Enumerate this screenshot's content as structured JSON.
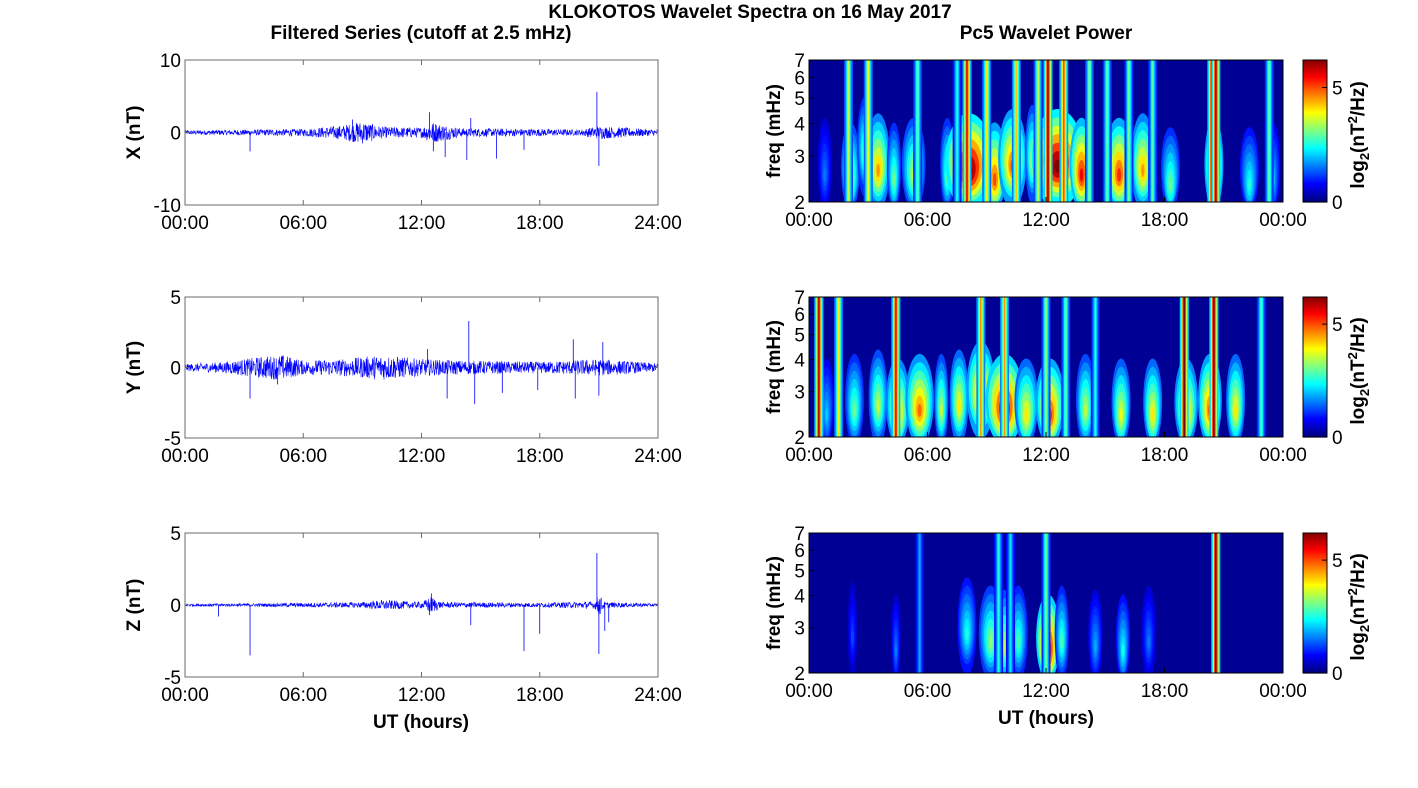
{
  "figure": {
    "title": "KLOKOTOS Wavelet Spectra on 16 May 2017",
    "left_column_title": "Filtered Series (cutoff at 2.5 mHz)",
    "right_column_title": "Pc5 Wavelet Power",
    "bottom_xlabel": "UT (hours)"
  },
  "chart_data": [
    {
      "type": "line",
      "id": "series-x",
      "ylabel": "X (nT)",
      "ylim": [
        -10,
        10
      ],
      "yticks": [
        "10",
        "0",
        "-10"
      ],
      "yticks_values": [
        10,
        0,
        -10
      ],
      "xlim": [
        0,
        24
      ],
      "xticks": [
        "00:00",
        "06:00",
        "12:00",
        "18:00",
        "24:00"
      ],
      "xticks_values": [
        0,
        6,
        12,
        18,
        24
      ],
      "line_color": "#0000ff",
      "noise_envelope": [
        [
          0,
          0.3
        ],
        [
          3,
          0.4
        ],
        [
          6,
          0.5
        ],
        [
          8,
          1.0
        ],
        [
          9,
          1.6
        ],
        [
          10,
          0.8
        ],
        [
          12,
          0.7
        ],
        [
          12.5,
          1.5
        ],
        [
          14,
          0.6
        ],
        [
          18,
          0.5
        ],
        [
          20,
          0.4
        ],
        [
          21,
          0.9
        ],
        [
          24,
          0.4
        ]
      ],
      "spikes": [
        [
          3.3,
          -2.6
        ],
        [
          8.5,
          1.8
        ],
        [
          12.4,
          2.8
        ],
        [
          12.6,
          -2.6
        ],
        [
          13.2,
          -3.4
        ],
        [
          14.3,
          -3.8
        ],
        [
          14.5,
          2.0
        ],
        [
          15.8,
          -3.6
        ],
        [
          17.2,
          -2.4
        ],
        [
          20.9,
          5.6
        ],
        [
          21.0,
          -4.6
        ]
      ]
    },
    {
      "type": "line",
      "id": "series-y",
      "ylabel": "Y (nT)",
      "ylim": [
        -5,
        5
      ],
      "yticks": [
        "5",
        "0",
        "-5"
      ],
      "yticks_values": [
        5,
        0,
        -5
      ],
      "xlim": [
        0,
        24
      ],
      "xticks": [
        "00:00",
        "06:00",
        "12:00",
        "18:00",
        "24:00"
      ],
      "xticks_values": [
        0,
        6,
        12,
        18,
        24
      ],
      "line_color": "#0000ff",
      "noise_envelope": [
        [
          0,
          0.25
        ],
        [
          2,
          0.4
        ],
        [
          4,
          0.8
        ],
        [
          5,
          0.9
        ],
        [
          6,
          0.5
        ],
        [
          8,
          0.6
        ],
        [
          10,
          0.9
        ],
        [
          12,
          0.6
        ],
        [
          14,
          0.5
        ],
        [
          18,
          0.4
        ],
        [
          21,
          0.6
        ],
        [
          24,
          0.3
        ]
      ],
      "spikes": [
        [
          3.3,
          -2.2
        ],
        [
          4.7,
          -1.2
        ],
        [
          12.3,
          1.3
        ],
        [
          13.3,
          -2.2
        ],
        [
          14.4,
          3.3
        ],
        [
          14.7,
          -2.6
        ],
        [
          16.1,
          -1.8
        ],
        [
          17.9,
          -1.6
        ],
        [
          19.7,
          2.0
        ],
        [
          19.8,
          -2.2
        ],
        [
          21.0,
          -2.0
        ],
        [
          21.2,
          1.8
        ]
      ]
    },
    {
      "type": "line",
      "id": "series-z",
      "ylabel": "Z (nT)",
      "ylim": [
        -5,
        5
      ],
      "yticks": [
        "5",
        "0",
        "-5"
      ],
      "yticks_values": [
        5,
        0,
        -5
      ],
      "xlim": [
        0,
        24
      ],
      "xticks": [
        "00:00",
        "06:00",
        "12:00",
        "18:00",
        "24:00"
      ],
      "xticks_values": [
        0,
        6,
        12,
        18,
        24
      ],
      "line_color": "#0000ff",
      "noise_envelope": [
        [
          0,
          0.1
        ],
        [
          3,
          0.1
        ],
        [
          6,
          0.15
        ],
        [
          9,
          0.2
        ],
        [
          10,
          0.35
        ],
        [
          12,
          0.2
        ],
        [
          12.5,
          0.6
        ],
        [
          13,
          0.2
        ],
        [
          18,
          0.15
        ],
        [
          20.8,
          0.25
        ],
        [
          21,
          0.8
        ],
        [
          21.3,
          0.2
        ],
        [
          24,
          0.1
        ]
      ],
      "spikes": [
        [
          1.7,
          -0.8
        ],
        [
          3.3,
          -3.5
        ],
        [
          12.5,
          0.8
        ],
        [
          12.4,
          -0.7
        ],
        [
          14.5,
          -1.4
        ],
        [
          17.2,
          -3.2
        ],
        [
          18.0,
          -2.0
        ],
        [
          20.9,
          3.6
        ],
        [
          21.0,
          -3.4
        ],
        [
          21.3,
          -1.8
        ],
        [
          21.5,
          -1.2
        ]
      ]
    },
    {
      "type": "heatmap",
      "id": "wavelet-x",
      "ylabel": "freq (mHz)",
      "ylim": [
        2,
        7
      ],
      "yscale": "log",
      "yticks": [
        "2",
        "3",
        "4",
        "5",
        "6",
        "7"
      ],
      "yticks_values": [
        2,
        3,
        4,
        5,
        6,
        7
      ],
      "xlim": [
        0,
        24
      ],
      "xticks": [
        "00:00",
        "06:00",
        "12:00",
        "18:00",
        "00:00"
      ],
      "xticks_values": [
        0,
        6,
        12,
        18,
        24
      ],
      "colorbar": {
        "label_main": "log",
        "label_sub": "2",
        "label_rest_a": "(nT",
        "label_sup": "2",
        "label_rest_b": "/Hz)",
        "ticks": [
          "0",
          "5"
        ],
        "ticks_values": [
          0,
          5
        ],
        "range": [
          0,
          6.2
        ],
        "colormap": "jet"
      },
      "blobs": [
        [
          0.8,
          2.5,
          0.3,
          1.5
        ],
        [
          2.1,
          2.4,
          0.4,
          3.5
        ],
        [
          2.8,
          3.0,
          0.3,
          3.0
        ],
        [
          3.5,
          2.6,
          0.5,
          4.5
        ],
        [
          4.3,
          2.4,
          0.3,
          3.0
        ],
        [
          5.3,
          2.5,
          0.5,
          3.5
        ],
        [
          7.0,
          2.5,
          0.3,
          3.0
        ],
        [
          8.1,
          2.6,
          1.0,
          6.5
        ],
        [
          9.4,
          2.4,
          0.5,
          5.0
        ],
        [
          10.3,
          2.7,
          0.6,
          5.0
        ],
        [
          11.3,
          2.8,
          0.3,
          3.5
        ],
        [
          12.6,
          2.7,
          1.1,
          6.5
        ],
        [
          13.8,
          2.5,
          0.5,
          5.5
        ],
        [
          15.7,
          2.5,
          0.6,
          5.2
        ],
        [
          16.9,
          2.6,
          0.5,
          4.5
        ],
        [
          18.3,
          2.3,
          0.4,
          3.0
        ],
        [
          20.5,
          2.5,
          0.4,
          5.0
        ],
        [
          22.3,
          2.3,
          0.4,
          2.5
        ],
        [
          23.5,
          2.4,
          0.3,
          2.0
        ]
      ],
      "streaks": [
        [
          2.0,
          3.5
        ],
        [
          3.0,
          3.8
        ],
        [
          5.5,
          3.0
        ],
        [
          7.5,
          2.5
        ],
        [
          8.0,
          5.5
        ],
        [
          9.0,
          4.0
        ],
        [
          10.5,
          4.2
        ],
        [
          11.6,
          3.5
        ],
        [
          12.1,
          6.0
        ],
        [
          12.9,
          5.0
        ],
        [
          14.2,
          3.2
        ],
        [
          15.1,
          3.0
        ],
        [
          16.2,
          3.0
        ],
        [
          17.4,
          2.8
        ],
        [
          20.4,
          6.0
        ],
        [
          20.6,
          6.0
        ],
        [
          23.3,
          3.0
        ]
      ]
    },
    {
      "type": "heatmap",
      "id": "wavelet-y",
      "ylabel": "freq (mHz)",
      "ylim": [
        2,
        7
      ],
      "yscale": "log",
      "yticks": [
        "2",
        "3",
        "4",
        "5",
        "6",
        "7"
      ],
      "yticks_values": [
        2,
        3,
        4,
        5,
        6,
        7
      ],
      "xlim": [
        0,
        24
      ],
      "xticks": [
        "00:00",
        "06:00",
        "12:00",
        "18:00",
        "00:00"
      ],
      "xticks_values": [
        0,
        6,
        12,
        18,
        24
      ],
      "colorbar": {
        "label_main": "log",
        "label_sub": "2",
        "label_rest_a": "(nT",
        "label_sup": "2",
        "label_rest_b": "/Hz)",
        "ticks": [
          "0",
          "5"
        ],
        "ticks_values": [
          0,
          5
        ],
        "range": [
          0,
          6.2
        ],
        "colormap": "jet"
      },
      "blobs": [
        [
          0.9,
          2.4,
          0.3,
          2.0
        ],
        [
          2.3,
          2.5,
          0.4,
          3.0
        ],
        [
          3.5,
          2.6,
          0.4,
          3.5
        ],
        [
          4.5,
          2.4,
          0.5,
          4.5
        ],
        [
          5.6,
          2.5,
          0.6,
          4.8
        ],
        [
          6.7,
          2.5,
          0.3,
          3.5
        ],
        [
          7.6,
          2.6,
          0.4,
          4.0
        ],
        [
          8.7,
          2.8,
          0.6,
          5.0
        ],
        [
          9.9,
          2.5,
          0.8,
          6.0
        ],
        [
          11.0,
          2.4,
          0.5,
          4.0
        ],
        [
          12.2,
          2.4,
          0.6,
          5.2
        ],
        [
          14.0,
          2.5,
          0.4,
          3.5
        ],
        [
          15.8,
          2.4,
          0.4,
          3.8
        ],
        [
          17.4,
          2.4,
          0.4,
          4.0
        ],
        [
          19.1,
          2.4,
          0.5,
          4.5
        ],
        [
          20.3,
          2.5,
          0.5,
          5.0
        ],
        [
          21.6,
          2.5,
          0.4,
          4.0
        ]
      ],
      "streaks": [
        [
          0.5,
          5.8
        ],
        [
          1.5,
          4.0
        ],
        [
          4.4,
          5.5
        ],
        [
          8.7,
          4.5
        ],
        [
          9.9,
          4.5
        ],
        [
          12.0,
          3.2
        ],
        [
          13.0,
          3.0
        ],
        [
          14.5,
          2.5
        ],
        [
          19.0,
          6.2
        ],
        [
          20.5,
          6.2
        ],
        [
          22.9,
          2.8
        ]
      ]
    },
    {
      "type": "heatmap",
      "id": "wavelet-z",
      "ylabel": "freq (mHz)",
      "ylim": [
        2,
        7
      ],
      "yscale": "log",
      "yticks": [
        "2",
        "3",
        "4",
        "5",
        "6",
        "7"
      ],
      "yticks_values": [
        2,
        3,
        4,
        5,
        6,
        7
      ],
      "xlim": [
        0,
        24
      ],
      "xticks": [
        "00:00",
        "06:00",
        "12:00",
        "18:00",
        "00:00"
      ],
      "xticks_values": [
        0,
        6,
        12,
        18,
        24
      ],
      "colorbar": {
        "label_main": "log",
        "label_sub": "2",
        "label_rest_a": "(nT",
        "label_sup": "2",
        "label_rest_b": "/Hz)",
        "ticks": [
          "0",
          "5"
        ],
        "ticks_values": [
          0,
          5
        ],
        "range": [
          0,
          6.2
        ],
        "colormap": "jet"
      },
      "blobs": [
        [
          2.2,
          2.7,
          0.2,
          1.2
        ],
        [
          4.4,
          2.4,
          0.2,
          1.5
        ],
        [
          8.0,
          2.8,
          0.4,
          2.5
        ],
        [
          9.2,
          2.6,
          0.5,
          3.2
        ],
        [
          9.9,
          2.5,
          0.4,
          3.5
        ],
        [
          10.6,
          2.6,
          0.4,
          2.8
        ],
        [
          12.1,
          2.4,
          0.5,
          6.0
        ],
        [
          12.8,
          2.6,
          0.3,
          2.8
        ],
        [
          14.5,
          2.5,
          0.3,
          1.8
        ],
        [
          15.9,
          2.4,
          0.3,
          2.4
        ],
        [
          17.2,
          2.6,
          0.3,
          1.5
        ]
      ],
      "streaks": [
        [
          5.6,
          1.8
        ],
        [
          9.6,
          2.5
        ],
        [
          10.2,
          2.2
        ],
        [
          12.0,
          3.0
        ],
        [
          20.6,
          6.2
        ]
      ]
    }
  ]
}
